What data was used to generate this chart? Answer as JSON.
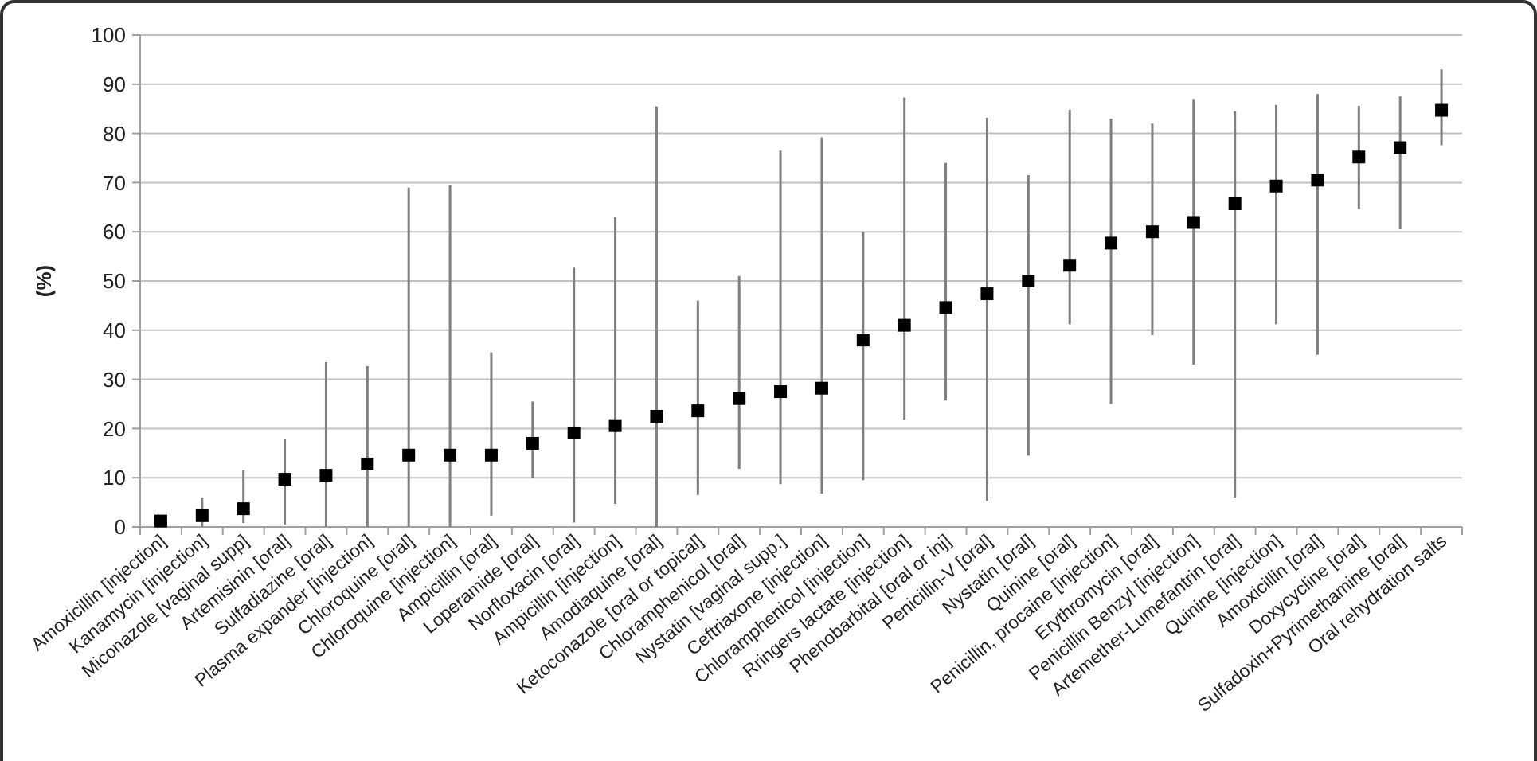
{
  "chart_data": {
    "type": "scatter",
    "ylabel": "(%)",
    "marker": "square",
    "grid": "y",
    "categories": [
      "Amoxicillin [injection]",
      "Kanamycin [injection]",
      "Miconazole [vaginal supp]",
      "Artemisinin [oral]",
      "Sulfadiazine [oral]",
      "Plasma expander [injection]",
      "Chloroquine [oral]",
      "Chloroquine [injection]",
      "Ampicillin [oral]",
      "Loperamide [oral]",
      "Norfloxacin [oral]",
      "Ampicillin [injection]",
      "Amodiaquine [oral]",
      "Ketoconazole [oral or topical]",
      "Chloramphenicol [oral]",
      "Nystatin [vaginal supp.]",
      "Ceftriaxone [injection]",
      "Chloramphenicol [injection]",
      "Rringers lactate [injection]",
      "Phenobarbital [oral or inj]",
      "Penicillin-V [oral]",
      "Nystatin [oral]",
      "Quinine [oral]",
      "Penicillin, procaine [injection]",
      "Erythromycin [oral]",
      "Penicillin Benzyl [injection]",
      "Artemether-Lumefantrin [oral]",
      "Quinine [injection]",
      "Amoxicillin [oral]",
      "Doxycycline [oral]",
      "Sulfadoxin+Pyrimethamine [oral]",
      "Oral rehydration salts"
    ],
    "series": [
      {
        "color": "#000000",
        "values": [
          1.2,
          2.3,
          3.7,
          9.7,
          10.5,
          12.8,
          14.6,
          14.6,
          14.6,
          17,
          19.1,
          20.6,
          22.5,
          23.6,
          26.1,
          27.5,
          28.2,
          38,
          41,
          44.6,
          47.4,
          50,
          53.2,
          57.7,
          60,
          61.9,
          65.7,
          69.3,
          70.5,
          75.2,
          77.1,
          84.7
        ],
        "errors": [
          null,
          [
            0,
            6
          ],
          [
            0.8,
            11.5
          ],
          [
            0.5,
            17.8
          ],
          [
            0,
            33.5
          ],
          [
            0,
            32.7
          ],
          [
            0,
            69
          ],
          [
            0,
            69.5
          ],
          [
            2.3,
            35.5
          ],
          [
            10,
            25.5
          ],
          [
            0.9,
            52.7
          ],
          [
            4.7,
            63
          ],
          [
            0,
            85.5
          ],
          [
            6.5,
            46
          ],
          [
            11.8,
            51
          ],
          [
            8.7,
            76.5
          ],
          [
            6.8,
            79.2
          ],
          [
            9.5,
            60
          ],
          [
            21.8,
            87.3
          ],
          [
            25.7,
            74
          ],
          [
            5.3,
            83.2
          ],
          [
            14.5,
            71.5
          ],
          [
            41.2,
            84.8
          ],
          [
            25,
            83
          ],
          [
            39,
            82
          ],
          [
            33,
            87
          ],
          [
            6,
            84.5
          ],
          [
            41.2,
            85.8
          ],
          [
            35,
            88
          ],
          [
            64.7,
            85.6
          ],
          [
            60.5,
            87.5
          ],
          [
            77.6,
            93
          ]
        ]
      }
    ],
    "ylim": [
      0,
      100
    ],
    "yticks": [
      0,
      10,
      20,
      30,
      40,
      50,
      60,
      70,
      80,
      90,
      100
    ]
  }
}
